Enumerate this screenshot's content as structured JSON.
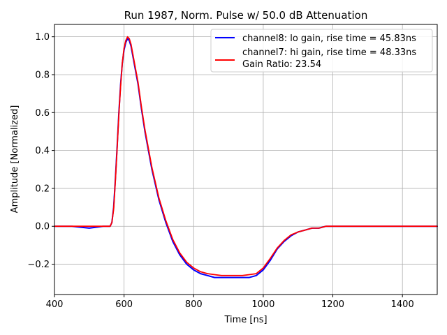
{
  "chart_data": {
    "type": "line",
    "title": "Run 1987, Norm. Pulse w/ 50.0 dB Attenuation",
    "xlabel": "Time [ns]",
    "ylabel": "Amplitude [Normalized]",
    "xlim": [
      400,
      1500
    ],
    "ylim": [
      -0.36,
      1.065
    ],
    "grid": true,
    "legend_position": "top-right",
    "x_ticks": [
      400,
      600,
      800,
      1000,
      1200,
      1400
    ],
    "y_ticks": [
      -0.2,
      0.0,
      0.2,
      0.4,
      0.6,
      0.8,
      1.0
    ],
    "x_tick_labels": [
      "400",
      "600",
      "800",
      "1000",
      "1200",
      "1400"
    ],
    "y_tick_labels": [
      "−0.2",
      "0.0",
      "0.2",
      "0.4",
      "0.6",
      "0.8",
      "1.0"
    ],
    "legend_extra": "Gain Ratio: 23.54",
    "series": [
      {
        "name": "channel8: lo gain, rise time = 45.83ns",
        "color": "#0000ff",
        "x": [
          400,
          450,
          500,
          540,
          560,
          565,
          570,
          575,
          580,
          585,
          590,
          595,
          600,
          605,
          610,
          615,
          620,
          625,
          630,
          640,
          650,
          660,
          680,
          700,
          720,
          740,
          760,
          780,
          800,
          820,
          840,
          860,
          880,
          900,
          920,
          940,
          960,
          980,
          1000,
          1020,
          1040,
          1060,
          1080,
          1100,
          1120,
          1140,
          1160,
          1180,
          1200,
          1250,
          1300,
          1350,
          1400,
          1450,
          1500
        ],
        "y": [
          0.0,
          0.0,
          -0.01,
          0.0,
          0.0,
          0.02,
          0.1,
          0.25,
          0.42,
          0.6,
          0.75,
          0.86,
          0.93,
          0.97,
          0.99,
          0.98,
          0.95,
          0.9,
          0.85,
          0.75,
          0.62,
          0.5,
          0.3,
          0.14,
          0.02,
          -0.08,
          -0.15,
          -0.2,
          -0.23,
          -0.25,
          -0.26,
          -0.27,
          -0.27,
          -0.27,
          -0.27,
          -0.27,
          -0.27,
          -0.26,
          -0.23,
          -0.18,
          -0.12,
          -0.08,
          -0.05,
          -0.03,
          -0.02,
          -0.01,
          -0.01,
          0.0,
          0.0,
          0.0,
          0.0,
          0.0,
          0.0,
          0.0,
          0.0
        ]
      },
      {
        "name": "channel7: hi gain, rise time = 48.33ns",
        "color": "#ff0000",
        "x": [
          400,
          450,
          500,
          540,
          560,
          565,
          570,
          575,
          580,
          585,
          590,
          595,
          600,
          605,
          610,
          615,
          620,
          625,
          630,
          640,
          650,
          660,
          680,
          700,
          720,
          740,
          760,
          780,
          800,
          820,
          840,
          860,
          880,
          900,
          920,
          940,
          960,
          980,
          1000,
          1020,
          1040,
          1060,
          1080,
          1100,
          1120,
          1140,
          1160,
          1180,
          1200,
          1250,
          1300,
          1350,
          1400,
          1450,
          1500
        ],
        "y": [
          0.0,
          0.0,
          0.0,
          0.0,
          0.0,
          0.02,
          0.09,
          0.24,
          0.41,
          0.59,
          0.74,
          0.86,
          0.94,
          0.98,
          1.0,
          0.99,
          0.96,
          0.91,
          0.86,
          0.76,
          0.63,
          0.51,
          0.31,
          0.15,
          0.03,
          -0.07,
          -0.14,
          -0.19,
          -0.22,
          -0.24,
          -0.25,
          -0.255,
          -0.26,
          -0.26,
          -0.26,
          -0.26,
          -0.255,
          -0.25,
          -0.22,
          -0.17,
          -0.115,
          -0.075,
          -0.045,
          -0.03,
          -0.02,
          -0.01,
          -0.01,
          0.0,
          0.0,
          0.0,
          0.0,
          0.0,
          0.0,
          0.0,
          0.0
        ]
      }
    ]
  }
}
